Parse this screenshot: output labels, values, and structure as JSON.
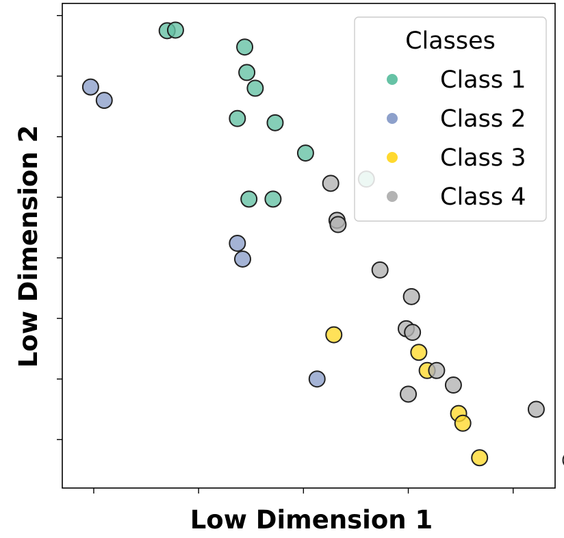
{
  "chart_data": {
    "type": "scatter",
    "xlabel": "Low Dimension 1",
    "ylabel": "Low Dimension 2",
    "tick_labels_shown": false,
    "xlim": [
      -1.3,
      3.4
    ],
    "ylim": [
      -3.8,
      4.2
    ],
    "grid": false,
    "legend": {
      "title": "Classes",
      "placement": "top-right"
    },
    "series": [
      {
        "name": "Class 1",
        "color": "#66c2a5",
        "points": [
          [
            -0.3,
            3.75
          ],
          [
            -0.22,
            3.76
          ],
          [
            0.44,
            3.48
          ],
          [
            0.46,
            3.06
          ],
          [
            0.54,
            2.8
          ],
          [
            0.37,
            2.3
          ],
          [
            0.73,
            2.23
          ],
          [
            1.02,
            1.73
          ],
          [
            1.6,
            1.3
          ],
          [
            0.48,
            0.97
          ],
          [
            0.71,
            0.97
          ]
        ]
      },
      {
        "name": "Class 2",
        "color": "#8da0cb",
        "points": [
          [
            -1.03,
            2.82
          ],
          [
            -0.9,
            2.6
          ],
          [
            0.37,
            0.24
          ],
          [
            0.42,
            -0.02
          ],
          [
            1.13,
            -2.0
          ]
        ]
      },
      {
        "name": "Class 3",
        "color": "#ffd92f",
        "points": [
          [
            2.1,
            -1.56
          ],
          [
            2.18,
            -1.86
          ],
          [
            1.29,
            -1.27
          ],
          [
            2.48,
            -2.57
          ],
          [
            2.52,
            -2.73
          ],
          [
            2.68,
            -3.3
          ]
        ]
      },
      {
        "name": "Class 4",
        "color": "#b3b3b3",
        "points": [
          [
            1.26,
            1.23
          ],
          [
            1.32,
            0.62
          ],
          [
            1.33,
            0.55
          ],
          [
            1.73,
            -0.2
          ],
          [
            2.03,
            -0.64
          ],
          [
            1.98,
            -1.17
          ],
          [
            2.04,
            -1.23
          ],
          [
            2.27,
            -1.86
          ],
          [
            2.43,
            -2.1
          ],
          [
            2.0,
            -2.25
          ],
          [
            3.22,
            -2.5
          ],
          [
            3.55,
            -3.34
          ]
        ]
      }
    ]
  }
}
